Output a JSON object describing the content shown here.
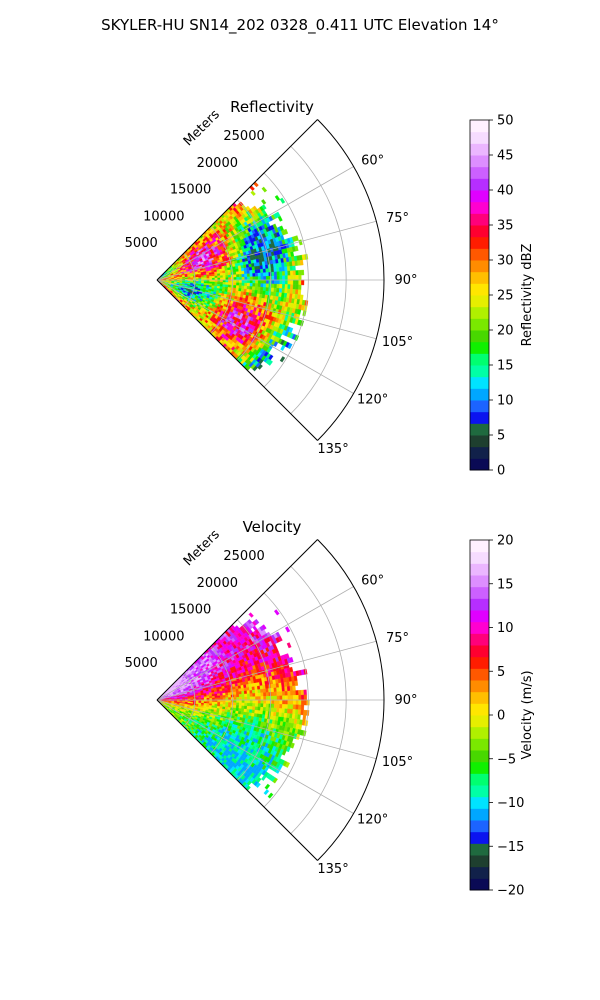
{
  "figure": {
    "title": "SKYLER-HU  SN14_202  0328_0.411 UTC Elevation 14°"
  },
  "chart_data": [
    {
      "type": "polar-sector",
      "title": "Reflectivity",
      "radial_label": "Meters",
      "radial_ticks": [
        5000,
        10000,
        15000,
        20000,
        25000
      ],
      "radial_tick_labels": [
        "5000",
        "10000",
        "15000",
        "20000",
        "25000"
      ],
      "rmax": 30000,
      "angular_ticks_deg": [
        60,
        75,
        90,
        105,
        120,
        135
      ],
      "angular_tick_labels": [
        "60°",
        "75°",
        "90°",
        "105°",
        "120°",
        "135°"
      ],
      "sector_deg": [
        45,
        135
      ],
      "data_extent_m": 20000,
      "colorbar": {
        "label": "Reflectivity dBZ",
        "range": [
          0,
          50
        ],
        "ticks": [
          0,
          5,
          10,
          15,
          20,
          25,
          30,
          35,
          40,
          45,
          50
        ],
        "tick_labels": [
          "0",
          "5",
          "10",
          "15",
          "20",
          "25",
          "30",
          "35",
          "40",
          "45",
          "50"
        ]
      },
      "colormap": [
        "#0a0a55",
        "#11214a",
        "#1e3f2f",
        "#1f6a3f",
        "#0b14f0",
        "#1c64ff",
        "#00a7ff",
        "#00e3ff",
        "#00ffa6",
        "#00ff70",
        "#10f000",
        "#48d800",
        "#7ae800",
        "#b0f000",
        "#e6ee00",
        "#ffe600",
        "#ffbf00",
        "#ff8c00",
        "#ff5800",
        "#ff1d00",
        "#ff0030",
        "#ff007a",
        "#ff00d0",
        "#e000ff",
        "#b62eff",
        "#cc60ff",
        "#dd8eff",
        "#ebb6ff",
        "#f6dcff",
        "#fff0ff"
      ],
      "field_range": [
        5,
        45
      ],
      "field_center": 27
    },
    {
      "type": "polar-sector",
      "title": "Velocity",
      "radial_label": "Meters",
      "radial_ticks": [
        5000,
        10000,
        15000,
        20000,
        25000
      ],
      "radial_tick_labels": [
        "5000",
        "10000",
        "15000",
        "20000",
        "25000"
      ],
      "rmax": 30000,
      "angular_ticks_deg": [
        60,
        75,
        90,
        105,
        120,
        135
      ],
      "angular_tick_labels": [
        "60°",
        "75°",
        "90°",
        "105°",
        "120°",
        "135°"
      ],
      "sector_deg": [
        45,
        135
      ],
      "data_extent_m": 20000,
      "colorbar": {
        "label": "Velocity (m/s)",
        "range": [
          -20,
          20
        ],
        "ticks": [
          -20,
          -15,
          -10,
          -5,
          0,
          5,
          10,
          15,
          20
        ],
        "tick_labels": [
          "−20",
          "−15",
          "−10",
          "−5",
          "0",
          "5",
          "10",
          "15",
          "20"
        ]
      },
      "colormap": [
        "#0a0a55",
        "#11214a",
        "#1e3f2f",
        "#1f6a3f",
        "#0b14f0",
        "#1c64ff",
        "#00a7ff",
        "#00e3ff",
        "#00ffa6",
        "#00ff70",
        "#10f000",
        "#48d800",
        "#7ae800",
        "#b0f000",
        "#e6ee00",
        "#ffe600",
        "#ffbf00",
        "#ff8c00",
        "#ff5800",
        "#ff1d00",
        "#ff0030",
        "#ff007a",
        "#ff00d0",
        "#e000ff",
        "#b62eff",
        "#cc60ff",
        "#dd8eff",
        "#ebb6ff",
        "#f6dcff",
        "#fff0ff"
      ],
      "field_range": [
        -12,
        16
      ],
      "field_center": 4
    }
  ]
}
